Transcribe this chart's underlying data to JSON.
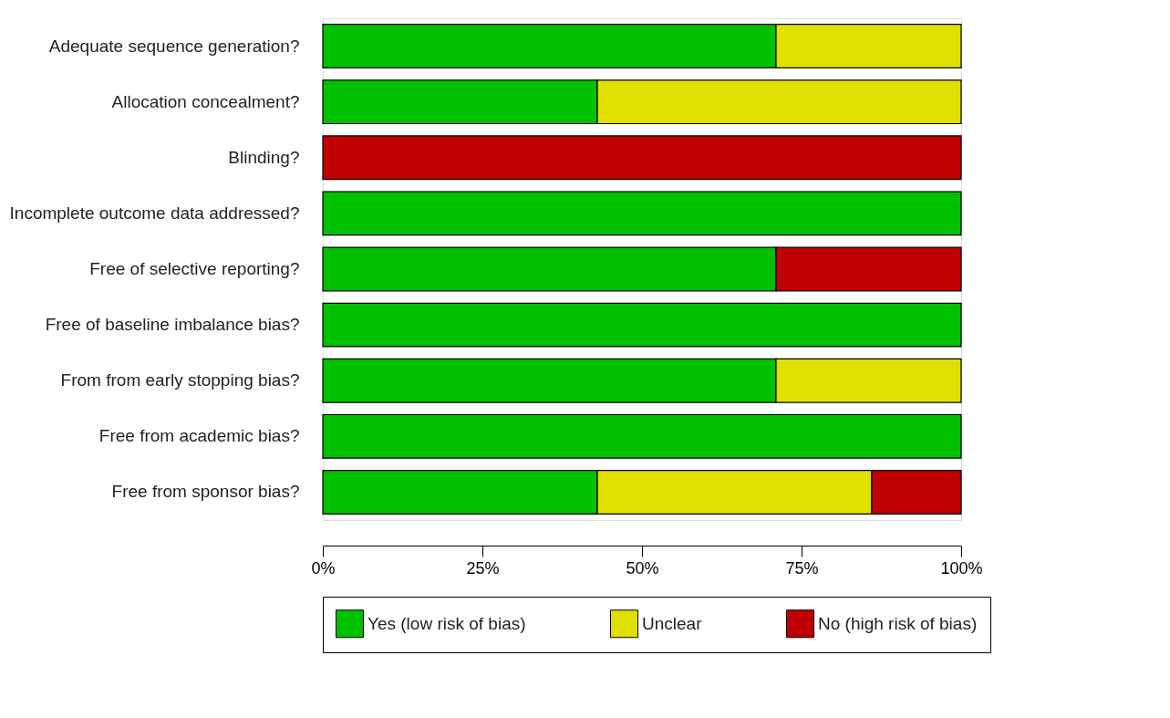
{
  "chart_data": {
    "type": "bar",
    "orientation": "horizontal",
    "stacked": true,
    "categories": [
      "Adequate sequence generation?",
      "Allocation concealment?",
      "Blinding?",
      "Incomplete outcome data addressed?",
      "Free of selective reporting?",
      "Free of baseline imbalance bias?",
      "From from early stopping bias?",
      "Free from academic bias?",
      "Free from sponsor bias?"
    ],
    "series": [
      {
        "name": "Yes (low risk of bias)",
        "color": "#00c000",
        "values": [
          71,
          43,
          0,
          100,
          71,
          100,
          71,
          100,
          43
        ]
      },
      {
        "name": "Unclear",
        "color": "#e0e000",
        "values": [
          29,
          57,
          0,
          0,
          0,
          0,
          29,
          0,
          43
        ]
      },
      {
        "name": "No (high risk of bias)",
        "color": "#c00000",
        "values": [
          0,
          0,
          100,
          0,
          29,
          0,
          0,
          0,
          14
        ]
      }
    ],
    "xlim": [
      0,
      100
    ],
    "xticks": [
      {
        "value": 0,
        "label": "0%"
      },
      {
        "value": 25,
        "label": "25%"
      },
      {
        "value": 50,
        "label": "50%"
      },
      {
        "value": 75,
        "label": "75%"
      },
      {
        "value": 100,
        "label": "100%"
      }
    ],
    "grid": false,
    "legend": "bottom"
  }
}
